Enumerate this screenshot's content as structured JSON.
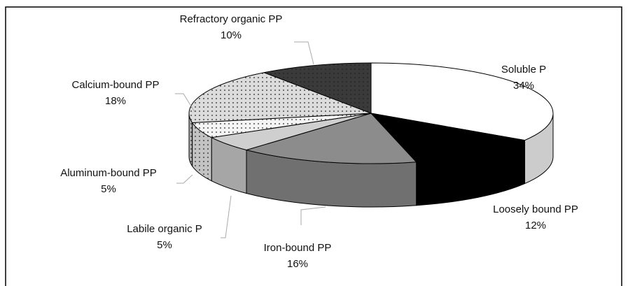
{
  "chart_data": {
    "type": "pie",
    "categories": [
      "Soluble P",
      "Loosely bound PP",
      "Iron-bound PP",
      "Labile organic P",
      "Aluminum-bound PP",
      "Calcium-bound PP",
      "Refractory organic PP"
    ],
    "values": [
      34,
      12,
      16,
      5,
      5,
      18,
      10
    ],
    "value_labels": [
      "34%",
      "12%",
      "16%",
      "5%",
      "5%",
      "18%",
      "10%"
    ],
    "colors": [
      "#ffffff",
      "#000000",
      "#8c8c8c",
      "#cfcfcf",
      "#f4f4f4",
      "#dcdcdc",
      "#3a3a3a"
    ]
  }
}
